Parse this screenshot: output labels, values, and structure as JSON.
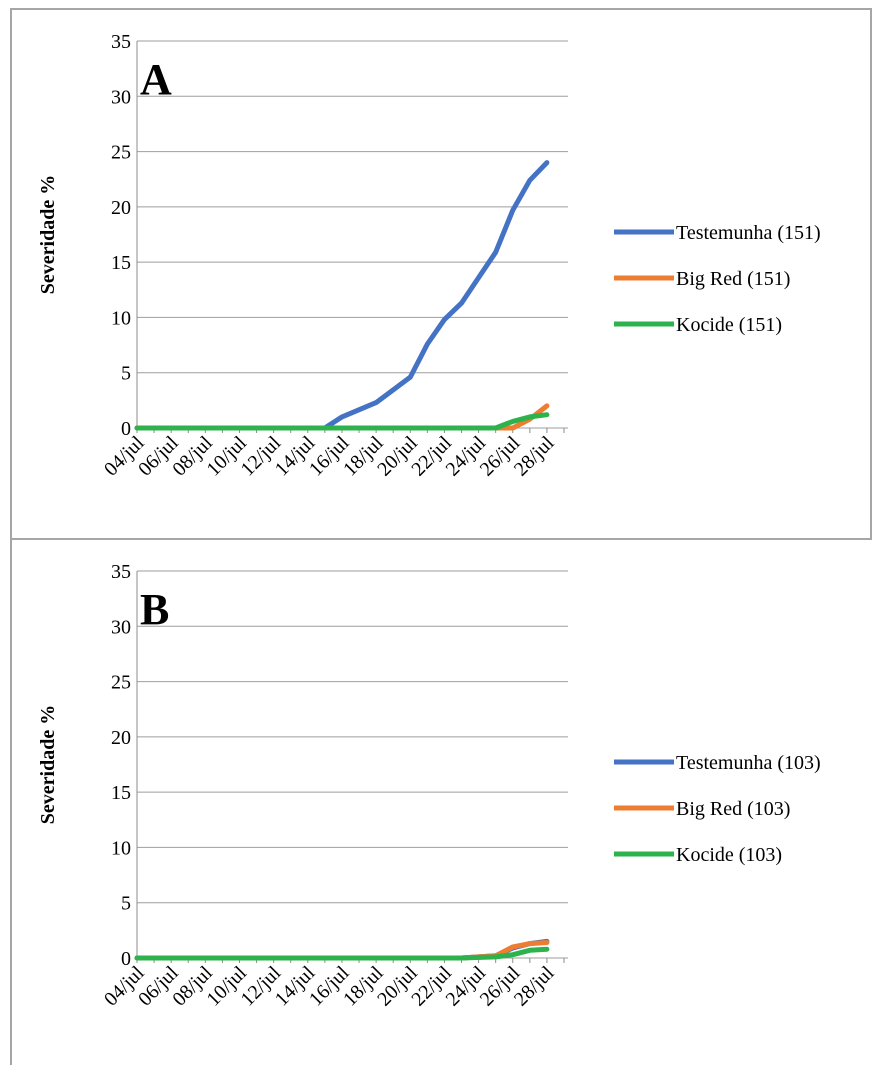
{
  "chart_data": [
    {
      "type": "line",
      "panel_label": "A",
      "ylabel": "Severidade %",
      "xlabel": "",
      "ylim": [
        0,
        35
      ],
      "yticks": [
        0,
        5,
        10,
        15,
        20,
        25,
        30,
        35
      ],
      "xlim": [
        "04/jul",
        "29/jul"
      ],
      "xtick_labels": [
        "04/jul",
        "06/jul",
        "08/jul",
        "10/jul",
        "12/jul",
        "14/jul",
        "16/jul",
        "18/jul",
        "20/jul",
        "22/jul",
        "24/jul",
        "26/jul",
        "28/jul"
      ],
      "grid": "horizontal",
      "legend_position": "right",
      "series": [
        {
          "name": "Testemunha (151)",
          "color": "#4472C4",
          "points": [
            [
              "04/jul",
              0
            ],
            [
              "15/jul",
              0
            ],
            [
              "16/jul",
              1
            ],
            [
              "18/jul",
              2.3
            ],
            [
              "20/jul",
              4.6
            ],
            [
              "21/jul",
              7.6
            ],
            [
              "22/jul",
              9.8
            ],
            [
              "23/jul",
              11.3
            ],
            [
              "24/jul",
              13.6
            ],
            [
              "25/jul",
              15.9
            ],
            [
              "26/jul",
              19.7
            ],
            [
              "27/jul",
              22.4
            ],
            [
              "28/jul",
              24
            ]
          ]
        },
        {
          "name": "Big Red (151)",
          "color": "#ED7D31",
          "points": [
            [
              "04/jul",
              0
            ],
            [
              "26/jul",
              0
            ],
            [
              "27/jul",
              0.8
            ],
            [
              "28/jul",
              2
            ]
          ]
        },
        {
          "name": "Kocide (151)",
          "color": "#2EB24B",
          "points": [
            [
              "04/jul",
              0
            ],
            [
              "25/jul",
              0
            ],
            [
              "26/jul",
              0.6
            ],
            [
              "27/jul",
              1
            ],
            [
              "28/jul",
              1.2
            ]
          ]
        }
      ]
    },
    {
      "type": "line",
      "panel_label": "B",
      "ylabel": "Severidade %",
      "xlabel": "",
      "ylim": [
        0,
        35
      ],
      "yticks": [
        0,
        5,
        10,
        15,
        20,
        25,
        30,
        35
      ],
      "xlim": [
        "04/jul",
        "29/jul"
      ],
      "xtick_labels": [
        "04/jul",
        "06/jul",
        "08/jul",
        "10/jul",
        "12/jul",
        "14/jul",
        "16/jul",
        "18/jul",
        "20/jul",
        "22/jul",
        "24/jul",
        "26/jul",
        "28/jul"
      ],
      "grid": "horizontal",
      "legend_position": "right",
      "series": [
        {
          "name": "Testemunha (103)",
          "color": "#4472C4",
          "points": [
            [
              "04/jul",
              0
            ],
            [
              "23/jul",
              0
            ],
            [
              "25/jul",
              0.2
            ],
            [
              "26/jul",
              0.9
            ],
            [
              "27/jul",
              1.3
            ],
            [
              "28/jul",
              1.5
            ]
          ]
        },
        {
          "name": "Big Red (103)",
          "color": "#ED7D31",
          "points": [
            [
              "04/jul",
              0
            ],
            [
              "23/jul",
              0
            ],
            [
              "25/jul",
              0.2
            ],
            [
              "26/jul",
              1
            ],
            [
              "27/jul",
              1.3
            ],
            [
              "28/jul",
              1.4
            ]
          ]
        },
        {
          "name": "Kocide (103)",
          "color": "#2EB24B",
          "points": [
            [
              "04/jul",
              0
            ],
            [
              "23/jul",
              0
            ],
            [
              "25/jul",
              0.1
            ],
            [
              "26/jul",
              0.3
            ],
            [
              "27/jul",
              0.7
            ],
            [
              "28/jul",
              0.8
            ]
          ]
        }
      ]
    }
  ]
}
